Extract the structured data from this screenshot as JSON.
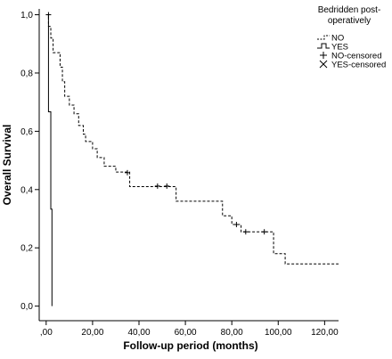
{
  "chart_data": {
    "type": "line",
    "subtype": "kaplan-meier",
    "title": "",
    "xlabel": "Follow-up period (months)",
    "ylabel": "Overall Survival",
    "xlim": [
      -3,
      126
    ],
    "ylim": [
      -0.05,
      1.02
    ],
    "x_ticks": [
      0,
      20,
      40,
      60,
      80,
      100,
      120
    ],
    "x_tick_labels": [
      ",00",
      "20,00",
      "40,00",
      "60,00",
      "80,00",
      "100,00",
      "120,00"
    ],
    "y_ticks": [
      0,
      0.2,
      0.4,
      0.6,
      0.8,
      1.0
    ],
    "y_tick_labels": [
      "0,0",
      "0,2",
      "0,4",
      "0,6",
      "0,8",
      "1,0"
    ],
    "grid": false,
    "legend": {
      "title": "Bedridden post-operatively",
      "title_lines": [
        "Bedridden post-",
        "operatively"
      ],
      "placement": "top-right",
      "entries": [
        "NO",
        "YES",
        "NO-censored",
        "YES-censored"
      ]
    },
    "series": [
      {
        "name": "NO",
        "style": "dashed",
        "steps": [
          [
            0,
            1.0
          ],
          [
            1,
            0.96
          ],
          [
            2,
            0.92
          ],
          [
            3,
            0.87
          ],
          [
            6,
            0.82
          ],
          [
            7,
            0.77
          ],
          [
            8,
            0.72
          ],
          [
            10,
            0.69
          ],
          [
            12,
            0.66
          ],
          [
            14,
            0.62
          ],
          [
            16,
            0.59
          ],
          [
            17,
            0.565
          ],
          [
            20,
            0.54
          ],
          [
            22,
            0.51
          ],
          [
            25,
            0.48
          ],
          [
            30,
            0.46
          ],
          [
            36,
            0.41
          ],
          [
            50,
            0.41
          ],
          [
            56,
            0.36
          ],
          [
            74,
            0.36
          ],
          [
            76,
            0.31
          ],
          [
            80,
            0.28
          ],
          [
            84,
            0.255
          ],
          [
            96,
            0.255
          ],
          [
            98,
            0.18
          ],
          [
            103,
            0.145
          ],
          [
            126,
            0.145
          ]
        ],
        "censored": [
          [
            1,
            1.0
          ],
          [
            35,
            0.458
          ],
          [
            48,
            0.412
          ],
          [
            52,
            0.412
          ],
          [
            82,
            0.28
          ],
          [
            86,
            0.255
          ],
          [
            94,
            0.255
          ]
        ]
      },
      {
        "name": "YES",
        "style": "solid",
        "steps": [
          [
            0,
            1.0
          ],
          [
            1,
            0.667
          ],
          [
            2,
            0.333
          ],
          [
            2.5,
            0.0
          ]
        ],
        "censored": []
      }
    ]
  }
}
